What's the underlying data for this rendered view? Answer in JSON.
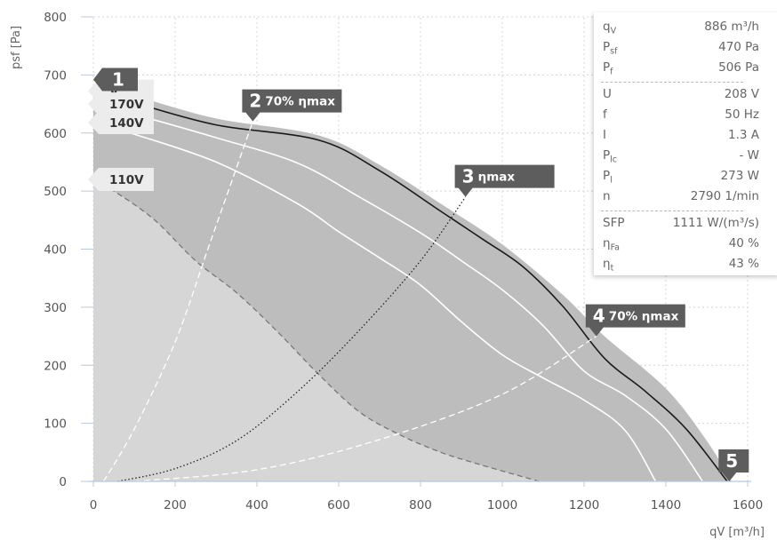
{
  "chart_data": {
    "type": "line",
    "xlabel": "qV [m³/h]",
    "ylabel": "psf [Pa]",
    "xlim": [
      0,
      1600
    ],
    "ylim": [
      0,
      800
    ],
    "x_ticks": [
      0,
      200,
      400,
      600,
      800,
      1000,
      1200,
      1400,
      1600
    ],
    "y_ticks": [
      0,
      100,
      200,
      300,
      400,
      500,
      600,
      700,
      800
    ],
    "grid": true,
    "envelope": {
      "x": [
        0,
        100,
        300,
        550,
        700,
        850,
        1000,
        1150,
        1250,
        1400,
        1500,
        1560
      ],
      "y": [
        680,
        664,
        625,
        596,
        545,
        478,
        408,
        320,
        250,
        160,
        70,
        0
      ]
    },
    "lower_boundary": {
      "x": [
        0,
        50,
        150,
        250,
        350,
        450,
        550,
        650,
        750,
        850,
        950,
        1050,
        1090
      ],
      "y": [
        515,
        500,
        450,
        380,
        325,
        258,
        185,
        120,
        80,
        50,
        28,
        8,
        0
      ]
    },
    "series": [
      {
        "name": "",
        "style": "solid-black",
        "x": [
          0,
          100,
          300,
          550,
          700,
          850,
          950,
          1050,
          1150,
          1250,
          1350,
          1450,
          1550
        ],
        "y": [
          670,
          652,
          614,
          588,
          535,
          465,
          418,
          370,
          300,
          212,
          155,
          90,
          0
        ]
      },
      {
        "name": "170V",
        "style": "solid-white",
        "x": [
          0,
          100,
          300,
          500,
          650,
          800,
          900,
          1000,
          1100,
          1200,
          1300,
          1400,
          1490
        ],
        "y": [
          650,
          632,
          592,
          548,
          490,
          428,
          380,
          330,
          268,
          190,
          148,
          90,
          0
        ]
      },
      {
        "name": "140V",
        "style": "solid-white",
        "x": [
          0,
          100,
          300,
          500,
          600,
          700,
          800,
          900,
          1000,
          1100,
          1200,
          1300,
          1375
        ],
        "y": [
          618,
          598,
          550,
          478,
          430,
          385,
          338,
          275,
          218,
          178,
          140,
          88,
          0
        ]
      },
      {
        "name": "110V",
        "style": "dashed-grey",
        "x": [
          0,
          50,
          150,
          250,
          350,
          450,
          550,
          650,
          750,
          850,
          950,
          1050,
          1090
        ],
        "y": [
          515,
          500,
          450,
          380,
          325,
          258,
          185,
          120,
          80,
          50,
          28,
          8,
          0
        ]
      },
      {
        "name": "70% ηmax",
        "style": "dashed-white",
        "x": [
          25,
          100,
          200,
          280,
          340,
          390
        ],
        "y": [
          0,
          90,
          240,
          400,
          520,
          620
        ]
      },
      {
        "name": "ηmax",
        "style": "dotted-black",
        "x": [
          60,
          200,
          350,
          500,
          650,
          800,
          910
        ],
        "y": [
          0,
          22,
          70,
          155,
          260,
          380,
          490
        ]
      },
      {
        "name": "70% ηmax",
        "style": "dashed-white",
        "x": [
          100,
          400,
          700,
          1000,
          1230
        ],
        "y": [
          0,
          20,
          72,
          150,
          250
        ]
      }
    ],
    "markers": [
      {
        "label": "1",
        "text": "",
        "x": 0,
        "y": 680,
        "pointer": "left"
      },
      {
        "label": "2",
        "text": "70% ηmax",
        "x": 390,
        "y": 620,
        "pointer": "down"
      },
      {
        "label": "3",
        "text": "ηmax",
        "x": 910,
        "y": 490,
        "pointer": "down"
      },
      {
        "label": "4",
        "text": "70% ηmax",
        "x": 1230,
        "y": 250,
        "pointer": "down"
      },
      {
        "label": "5",
        "text": "",
        "x": 1555,
        "y": 0,
        "pointer": "down"
      }
    ],
    "voltage_tags": [
      {
        "text": "V",
        "y": 672
      },
      {
        "text": "170V",
        "y": 650
      },
      {
        "text": "140V",
        "y": 618
      },
      {
        "text": "110V",
        "y": 520
      }
    ]
  },
  "operating_point": {
    "rows1": [
      {
        "sym": "q",
        "sub": "V",
        "val": "886 m³/h"
      },
      {
        "sym": "P",
        "sub": "sf",
        "val": "470 Pa"
      },
      {
        "sym": "P",
        "sub": "f",
        "val": "506 Pa"
      }
    ],
    "rows2": [
      {
        "sym": "U",
        "sub": "",
        "val": "208 V"
      },
      {
        "sym": "f",
        "sub": "",
        "val": "50 Hz"
      },
      {
        "sym": "I",
        "sub": "",
        "val": "1.3 A"
      },
      {
        "sym": "P",
        "sub": "lc",
        "val": "- W"
      },
      {
        "sym": "P",
        "sub": "l",
        "val": "273 W"
      },
      {
        "sym": "n",
        "sub": "",
        "val": "2790 1/min"
      }
    ],
    "rows3": [
      {
        "sym": "SFP",
        "sub": "",
        "val": "1111 W/(m³/s)"
      },
      {
        "sym": "η",
        "sub": "Fa",
        "val": "40 %"
      },
      {
        "sym": "η",
        "sub": "t",
        "val": "43 %"
      }
    ]
  }
}
